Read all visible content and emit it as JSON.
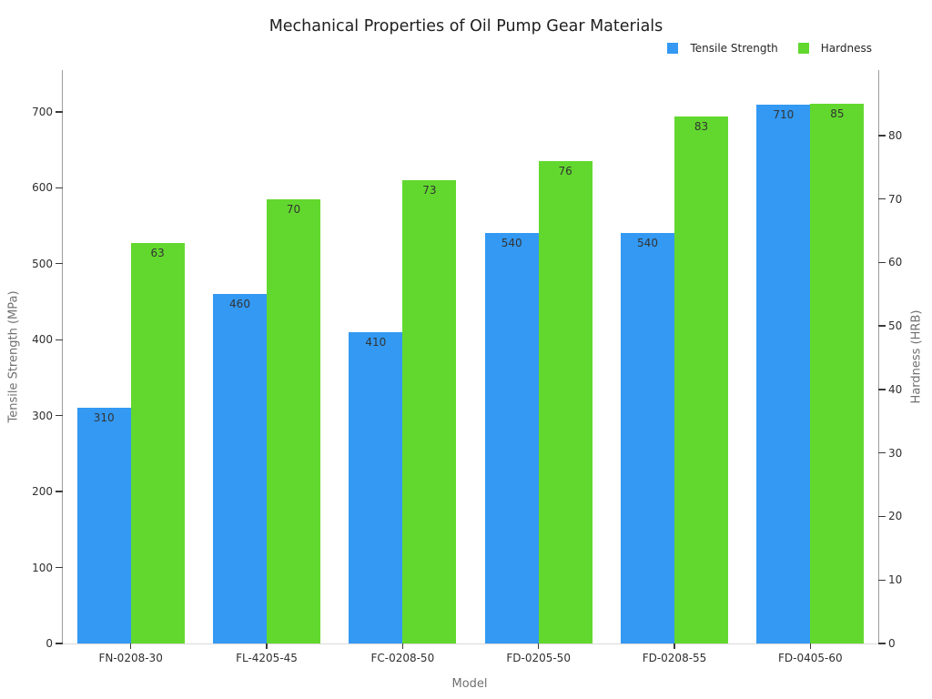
{
  "chart_data": {
    "type": "bar",
    "title": "Mechanical Properties of Oil Pump Gear Materials",
    "xlabel": "Model",
    "categories": [
      "FN-0208-30",
      "FL-4205-45",
      "FC-0208-50",
      "FD-0205-50",
      "FD-0208-55",
      "FD-0405-60"
    ],
    "series": [
      {
        "name": "Tensile Strength",
        "axis": "left",
        "color": "#3399f3",
        "values": [
          310,
          460,
          410,
          540,
          540,
          710
        ]
      },
      {
        "name": "Hardness",
        "axis": "right",
        "color": "#62d82e",
        "values": [
          63,
          70,
          73,
          76,
          83,
          85
        ]
      }
    ],
    "left_axis": {
      "label": "Tensile Strength (MPa)",
      "ticks": [
        0,
        100,
        200,
        300,
        400,
        500,
        600,
        700
      ],
      "range": [
        0,
        755
      ]
    },
    "right_axis": {
      "label": "Hardness (HRB)",
      "ticks": [
        0,
        10,
        20,
        30,
        40,
        50,
        60,
        70,
        80
      ],
      "range": [
        0,
        90.3
      ]
    },
    "legend": {
      "position": "top-right",
      "entries": [
        "Tensile Strength",
        "Hardness"
      ]
    },
    "grid": false,
    "bar_labels": true
  },
  "colors": {
    "tensile_strength": "#3399f3",
    "hardness": "#62d82e",
    "spine": "#9c9c9c",
    "baseline": "#d9d9d9",
    "tick": "#3a3a3a",
    "tick_label": "#2f2f2f",
    "axis_title": "#707070",
    "title": "#1f1f1f",
    "background": "#ffffff"
  }
}
